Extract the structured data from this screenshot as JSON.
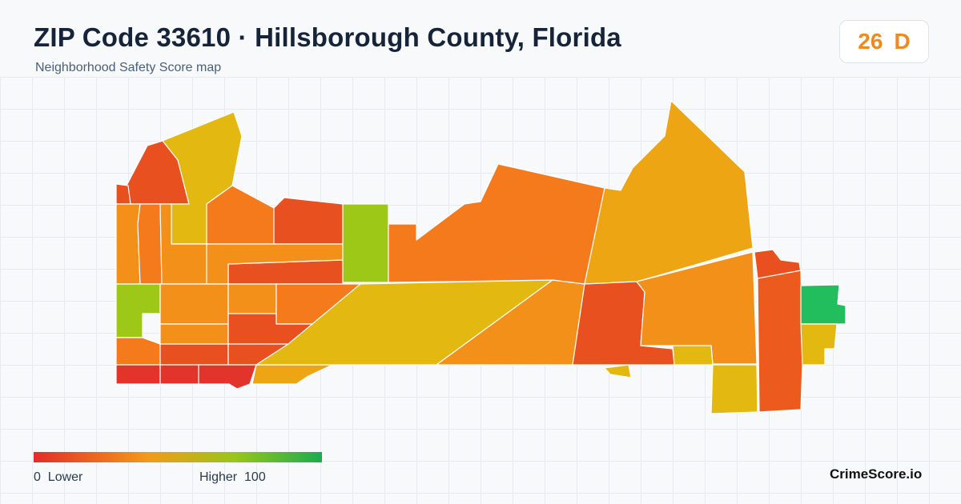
{
  "header": {
    "title": "ZIP Code 33610 · Hillsborough County, Florida",
    "subtitle": "Neighborhood Safety Score map"
  },
  "score": {
    "value": "26",
    "grade": "D",
    "color": "#f08a1c"
  },
  "legend": {
    "low_label": "0  Lower",
    "high_label": "Higher  100",
    "scale_min": 0,
    "scale_max": 100,
    "colors": [
      "#e32c29",
      "#f39a1a",
      "#98c61a",
      "#1bab4f"
    ]
  },
  "brand": "CrimeScore.io",
  "map": {
    "region_colors": {
      "red": "#e2342a",
      "red_orange": "#e8501f",
      "orange": "#f47a1c",
      "orange_amber": "#f2901a",
      "amber": "#eea514",
      "gold": "#e2b811",
      "olive": "#c7bc14",
      "yellow_green": "#9ec817",
      "green": "#22bd5c"
    }
  }
}
